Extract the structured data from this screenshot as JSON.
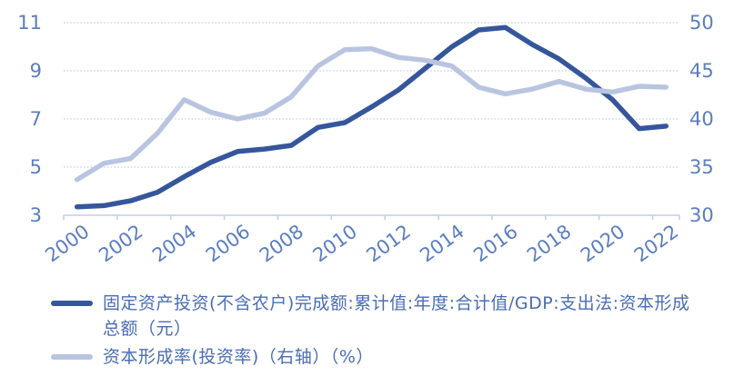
{
  "chart_data": {
    "type": "line",
    "title": "",
    "x": [
      2000,
      2001,
      2002,
      2003,
      2004,
      2005,
      2006,
      2007,
      2008,
      2009,
      2010,
      2011,
      2012,
      2013,
      2014,
      2015,
      2016,
      2017,
      2018,
      2019,
      2020,
      2021,
      2022
    ],
    "x_tick_labels": [
      "2000",
      "2002",
      "2004",
      "2006",
      "2008",
      "2010",
      "2012",
      "2014",
      "2016",
      "2018",
      "2020",
      "2022"
    ],
    "series": [
      {
        "name": "固定资产投资(不含农户)完成额:累计值:年度:合计值/GDP:支出法:资本形成总额（元）",
        "axis": "left",
        "color": "#35569b",
        "values": [
          3.35,
          3.4,
          3.6,
          3.95,
          4.6,
          5.2,
          5.65,
          5.75,
          5.9,
          6.65,
          6.85,
          7.5,
          8.2,
          9.1,
          10.0,
          10.7,
          10.8,
          10.1,
          9.5,
          8.7,
          7.8,
          6.6,
          6.7
        ]
      },
      {
        "name": "资本形成率(投资率)（右轴）（%）",
        "axis": "right",
        "color": "#b9c5e0",
        "values": [
          33.7,
          35.4,
          35.9,
          38.5,
          42.0,
          40.7,
          40.0,
          40.6,
          42.3,
          45.5,
          47.2,
          47.3,
          46.4,
          46.1,
          45.5,
          43.3,
          42.6,
          43.1,
          43.9,
          43.1,
          42.8,
          43.4,
          43.3
        ]
      }
    ],
    "left_axis": {
      "min": 3,
      "max": 11,
      "ticks": [
        3,
        5,
        7,
        9,
        11
      ]
    },
    "right_axis": {
      "min": 30,
      "max": 50,
      "ticks": [
        30,
        35,
        40,
        45,
        50
      ]
    },
    "grid": "horizontal-dotted",
    "legend_position": "bottom"
  },
  "style": {
    "axis_label_color": "#5b7dc1",
    "axis_line_color": "#c4cfe6",
    "grid_color": "#ccd7ea",
    "legend_text_color": "#4a6db4"
  }
}
